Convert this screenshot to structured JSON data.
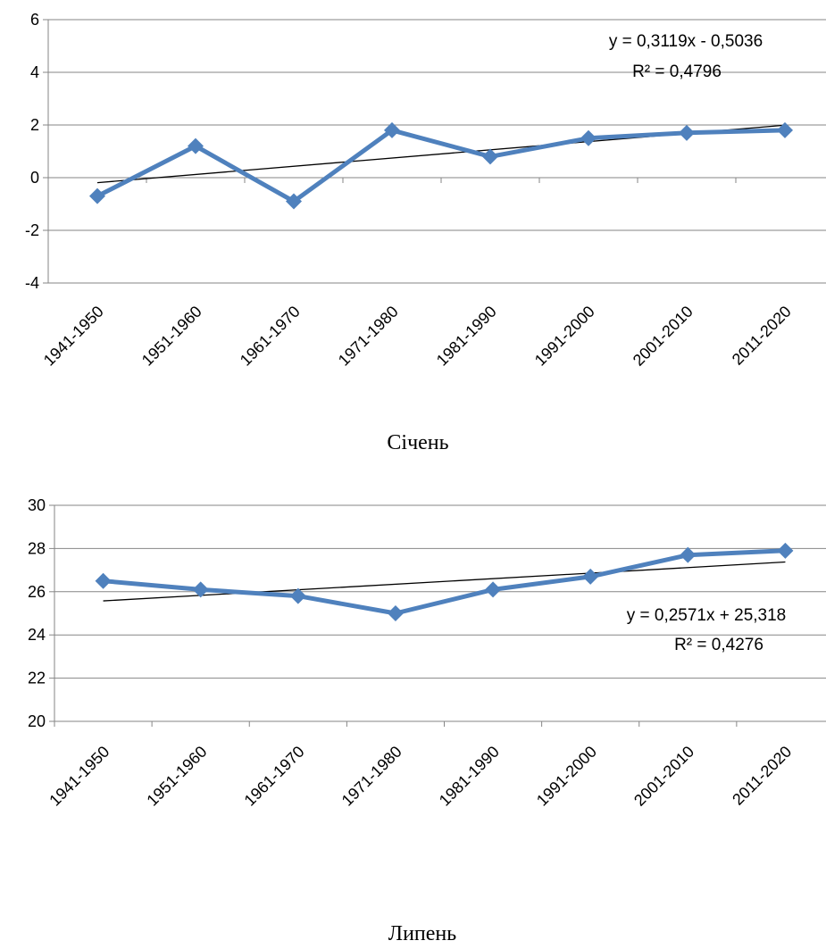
{
  "chart_data": [
    {
      "type": "line",
      "caption": "Січень",
      "categories": [
        "1941-1950",
        "1951-1960",
        "1961-1970",
        "1971-1980",
        "1981-1990",
        "1991-2000",
        "2001-2010",
        "2011-2020"
      ],
      "series": [
        {
          "values": [
            -0.7,
            1.2,
            -0.9,
            1.8,
            0.8,
            1.5,
            1.7,
            1.8
          ],
          "color": "#4F81BD",
          "marker": "diamond"
        }
      ],
      "trendline": {
        "slope": 0.3119,
        "intercept": -0.5036,
        "equation": "y = 0,3119x - 0,5036",
        "r_squared": "R² = 0,4796",
        "color": "#000000"
      },
      "ylim": [
        -4,
        6
      ],
      "yticks": [
        "-4",
        "-2",
        "0",
        "2",
        "4",
        "6"
      ],
      "grid": true,
      "legend": "none"
    },
    {
      "type": "line",
      "caption": "Липень",
      "categories": [
        "1941-1950",
        "1951-1960",
        "1961-1970",
        "1971-1980",
        "1981-1990",
        "1991-2000",
        "2001-2010",
        "2011-2020"
      ],
      "series": [
        {
          "values": [
            26.5,
            26.1,
            25.8,
            25.0,
            26.1,
            26.7,
            27.7,
            27.9
          ],
          "color": "#4F81BD",
          "marker": "diamond"
        }
      ],
      "trendline": {
        "slope": 0.2571,
        "intercept": 25.318,
        "equation": "y = 0,2571x + 25,318",
        "r_squared": "R² = 0,4276",
        "color": "#000000"
      },
      "ylim": [
        20,
        30
      ],
      "yticks": [
        "20",
        "22",
        "24",
        "26",
        "28",
        "30"
      ],
      "grid": true,
      "legend": "none"
    }
  ]
}
